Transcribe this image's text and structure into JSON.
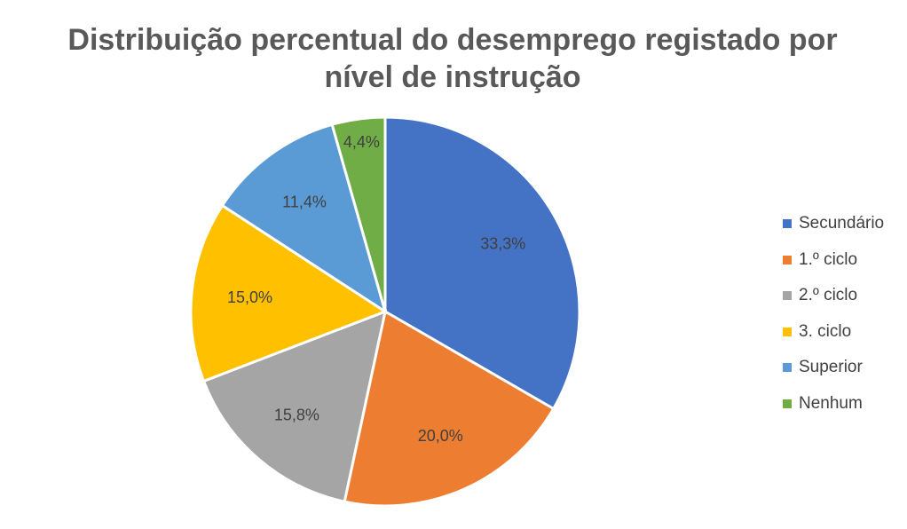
{
  "chart_data": {
    "type": "pie",
    "title": "Distribuição percentual do desemprego registado por nível de instrução",
    "categories": [
      "Secundário",
      "1.º ciclo",
      "2.º ciclo",
      "3. ciclo",
      "Superior",
      "Nenhum"
    ],
    "values": [
      33.3,
      20.0,
      15.8,
      15.0,
      11.4,
      4.4
    ],
    "value_labels": [
      "33,3%",
      "20,0%",
      "15,8%",
      "15,0%",
      "11,4%",
      "4,4%"
    ],
    "colors": [
      "#4472C4",
      "#ED7D31",
      "#A5A5A5",
      "#FFC000",
      "#5B9BD5",
      "#70AD47"
    ],
    "legend_position": "right"
  }
}
